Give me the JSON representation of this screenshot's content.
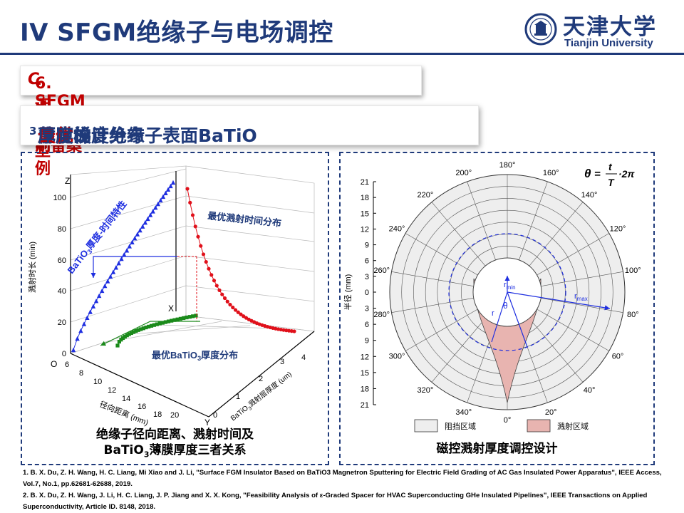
{
  "header": {
    "title": "IV SFGM绝缘子与电场调控",
    "logo_cn": "天津大学",
    "logo_en": "Tianjin University"
  },
  "subtitle": {
    "prefix": "6. 连续型",
    "italic": "C",
    "suffix": "-SFGM绝缘子制备案例"
  },
  "topic": {
    "part1": "优化设计绝缘子表面BaTiO",
    "sub": "3",
    "part2": "薄膜的",
    "highlight": "最优",
    "part3": "厚度梯度分布"
  },
  "left_figure": {
    "z_axis": "Z",
    "x_axis": "X",
    "y_axis": "Y",
    "origin": "O",
    "z_label": "溅射时长 (min)",
    "z_ticks": [
      "0",
      "20",
      "40",
      "60",
      "80",
      "100"
    ],
    "radial_label": "径向距离 (mm)",
    "radial_ticks": [
      "6",
      "8",
      "10",
      "12",
      "14",
      "16",
      "18",
      "20"
    ],
    "thickness_label": "BaTiO",
    "thickness_label_sub": "3",
    "thickness_label_rest": "溅射层厚度 (um)",
    "thickness_ticks": [
      "0",
      "1",
      "2",
      "3",
      "4"
    ],
    "curve_blue_label": "BaTiO",
    "curve_blue_sub": "3",
    "curve_blue_rest": "厚度-时间特性",
    "curve_red_label": "最优溅射时间分布",
    "curve_green_label": "最优BaTiO",
    "curve_green_sub": "3",
    "curve_green_rest": "厚度分布",
    "colors": {
      "blue": "#1f2fe0",
      "red": "#e0101a",
      "green": "#1a8a1a"
    }
  },
  "left_caption": {
    "line1": "绝缘子径向距离、溅射时间及",
    "line2a": "BaTiO",
    "line2_sub": "3",
    "line2b": "薄膜厚度三者关系"
  },
  "right_figure": {
    "formula_lhs": "θ",
    "formula_num": "t",
    "formula_den": "T",
    "formula_rest": "·2π",
    "angles": [
      "180°",
      "160°",
      "140°",
      "120°",
      "100°",
      "80°",
      "60°",
      "40°",
      "20°",
      "0°",
      "340°",
      "320°",
      "300°",
      "280°",
      "260°",
      "240°",
      "220°",
      "200°"
    ],
    "radius_label": "半径 (mm)",
    "radius_ticks_upper": [
      "21",
      "18",
      "15",
      "12",
      "9",
      "6",
      "3",
      "0"
    ],
    "radius_ticks_lower": [
      "3",
      "6",
      "9",
      "12",
      "15",
      "18",
      "21"
    ],
    "r_label": "r",
    "rmin_label": "r",
    "rmin_sub": "min",
    "rmax_label": "r",
    "rmax_sub": "max",
    "theta_label": "θ",
    "legend_block": "阻挡区域",
    "legend_sputter": "溅射区域",
    "colors": {
      "block": "#eeeeee",
      "sputter": "#e8b4b0",
      "arrow": "#1f2fe0"
    }
  },
  "right_caption": "磁控溅射厚度调控设计",
  "references": [
    "1. B. X. Du, Z. H. Wang, H. C. Liang, Mi Xiao and J. Li, \"Surface FGM Insulator Based on BaTiO3 Magnetron Sputtering for Electric Field Grading of AC Gas Insulated Power Apparatus\", IEEE Access, Vol.7, No.1, pp.62681-62688, 2019.",
    "2. B. X. Du, Z. H. Wang, J. Li, H. C. Liang, J. P. Jiang and X. X. Kong, \"Feasibility Analysis of ε-Graded Spacer for HVAC Superconducting GHe Insulated Pipelines\", IEEE Transactions on Applied Superconductivity, Article ID. 8148, 2018."
  ]
}
